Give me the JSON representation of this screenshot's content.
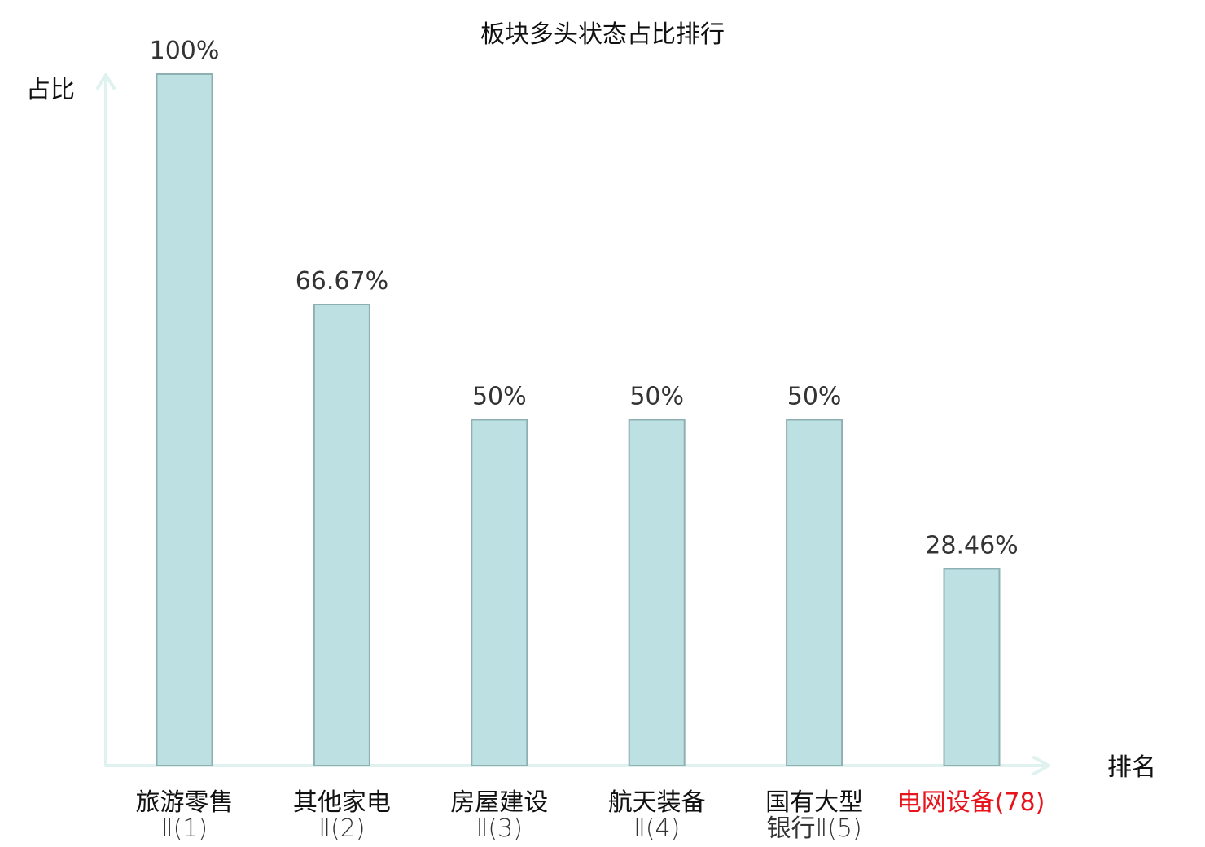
{
  "chart_data": {
    "type": "bar",
    "title": "板块多头状态占比排行",
    "ylabel": "占比",
    "xlabel": "排名",
    "ylim": [
      0,
      100
    ],
    "grid": false,
    "legend": "none",
    "categories": [
      {
        "lines": [
          "旅游零售",
          "Ⅱ(1)"
        ],
        "highlight": false
      },
      {
        "lines": [
          "其他家电",
          "Ⅱ(2)"
        ],
        "highlight": false
      },
      {
        "lines": [
          "房屋建设",
          "Ⅱ(3)"
        ],
        "highlight": false
      },
      {
        "lines": [
          "航天装备",
          "Ⅱ(4)"
        ],
        "highlight": false
      },
      {
        "lines": [
          "国有大型",
          "银行Ⅱ(5)"
        ],
        "highlight": false
      },
      {
        "lines": [
          "电网设备(78)"
        ],
        "highlight": true
      }
    ],
    "values": [
      100,
      66.67,
      50,
      50,
      50,
      28.46
    ],
    "value_labels": [
      "100%",
      "66.67%",
      "50%",
      "50%",
      "50%",
      "28.46%"
    ]
  },
  "colors": {
    "bar_fill": "#bde0e3",
    "bar_stroke": "#8fb0b3",
    "axis": "#dff2ef",
    "highlight_text": "#e8141c",
    "text": "#111111",
    "value_text": "#333333"
  }
}
